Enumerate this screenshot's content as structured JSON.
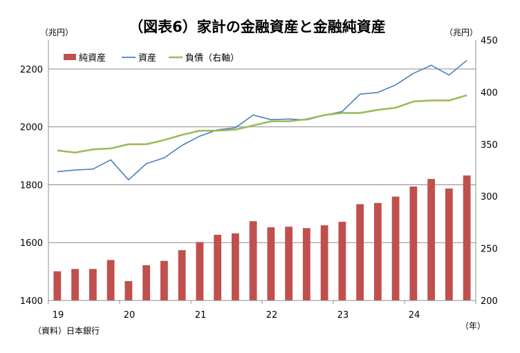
{
  "chart_data": {
    "type": "bar+line",
    "title": "（図表6）家計の金融資産と金融純資産",
    "left_unit": "（兆円）",
    "right_unit": "（兆円）",
    "x_unit": "（年）",
    "source": "（資料）日本銀行",
    "left_axis": {
      "min": 1400,
      "max": 2300,
      "ticks": [
        1400,
        1600,
        1800,
        2000,
        2200
      ]
    },
    "right_axis": {
      "min": 200,
      "max": 450,
      "ticks": [
        200,
        250,
        300,
        350,
        400,
        450
      ]
    },
    "x_tick_labels": [
      "19",
      "20",
      "21",
      "22",
      "23",
      "24"
    ],
    "quarters": [
      "2019Q1",
      "2019Q2",
      "2019Q3",
      "2019Q4",
      "2020Q1",
      "2020Q2",
      "2020Q3",
      "2020Q4",
      "2021Q1",
      "2021Q2",
      "2021Q3",
      "2021Q4",
      "2022Q1",
      "2022Q2",
      "2022Q3",
      "2022Q4",
      "2023Q1",
      "2023Q2",
      "2023Q3",
      "2023Q4",
      "2024Q1",
      "2024Q2",
      "2024Q3",
      "2024Q4"
    ],
    "series": [
      {
        "name": "純資産",
        "type": "bar",
        "axis": "left",
        "color": "#c0504d",
        "values": [
          1501,
          1509,
          1509,
          1540,
          1467,
          1522,
          1537,
          1574,
          1602,
          1627,
          1632,
          1674,
          1653,
          1655,
          1650,
          1660,
          1672,
          1733,
          1737,
          1759,
          1794,
          1820,
          1787,
          1832
        ]
      },
      {
        "name": "資産",
        "type": "line",
        "axis": "left",
        "color": "#4a7ebb",
        "values": [
          1845,
          1851,
          1854,
          1886,
          1817,
          1873,
          1893,
          1936,
          1968,
          1990,
          1997,
          2041,
          2025,
          2027,
          2024,
          2040,
          2053,
          2113,
          2119,
          2145,
          2185,
          2213,
          2179,
          2230
        ]
      },
      {
        "name": "負債（右軸）",
        "type": "line",
        "axis": "right",
        "color": "#9bbb59",
        "values": [
          344,
          342,
          345,
          346,
          350,
          350,
          354,
          359,
          363,
          363,
          364,
          368,
          372,
          372,
          374,
          378,
          380,
          380,
          383,
          385,
          391,
          392,
          392,
          397
        ]
      }
    ]
  }
}
